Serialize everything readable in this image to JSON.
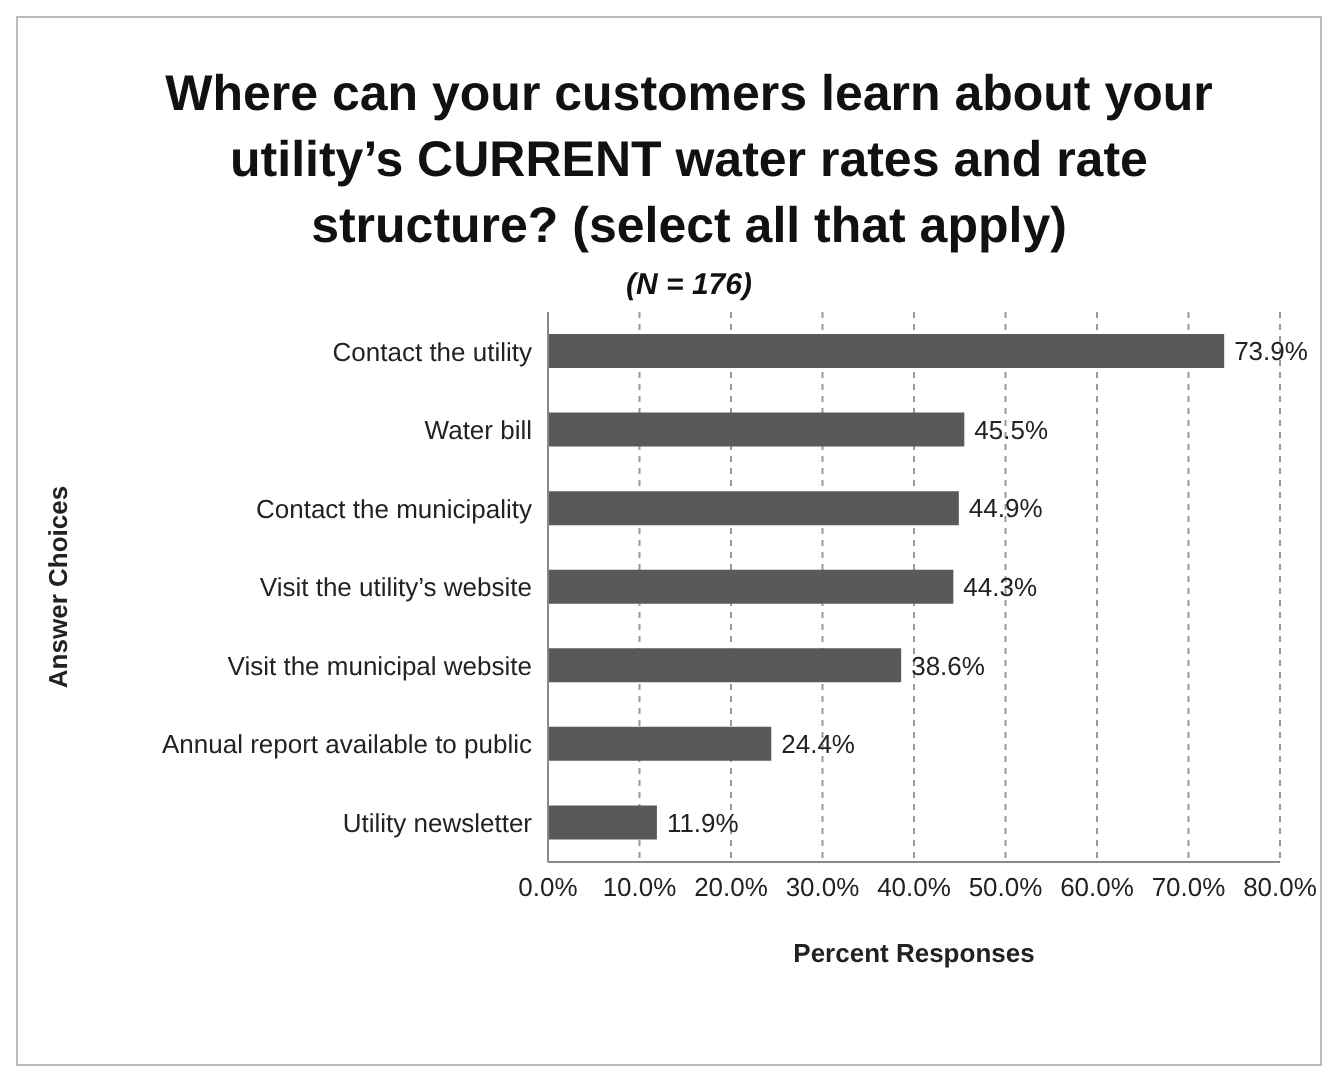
{
  "chart_data": {
    "type": "bar",
    "orientation": "horizontal",
    "title": "Where can your customers learn about your utility’s CURRENT water rates and rate structure? (select all that apply)",
    "subtitle": "(N = 176)",
    "xlabel": "Percent Responses",
    "ylabel": "Answer Choices",
    "categories": [
      "Contact the utility",
      "Water bill",
      "Contact the municipality",
      "Visit the utility’s website",
      "Visit the municipal website",
      "Annual report available to public",
      "Utility newsletter"
    ],
    "values": [
      73.9,
      45.5,
      44.9,
      44.3,
      38.6,
      24.4,
      11.9
    ],
    "value_labels": [
      "73.9%",
      "45.5%",
      "44.9%",
      "44.3%",
      "38.6%",
      "24.4%",
      "11.9%"
    ],
    "color": "#595959",
    "xlim": [
      0,
      80
    ],
    "xticks": [
      {
        "value": 0,
        "label": "0.0%"
      },
      {
        "value": 10,
        "label": "10.0%"
      },
      {
        "value": 20,
        "label": "20.0%"
      },
      {
        "value": 30,
        "label": "30.0%"
      },
      {
        "value": 40,
        "label": "40.0%"
      },
      {
        "value": 50,
        "label": "50.0%"
      },
      {
        "value": 60,
        "label": "60.0%"
      },
      {
        "value": 70,
        "label": "70.0%"
      },
      {
        "value": 80,
        "label": "80.0%"
      }
    ],
    "grid": "x"
  }
}
